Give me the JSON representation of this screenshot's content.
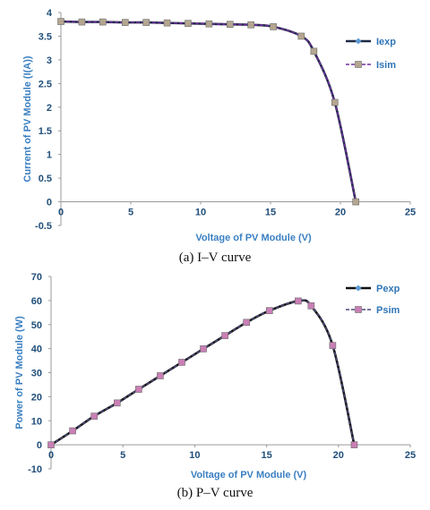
{
  "chart_data": [
    {
      "type": "line",
      "title": "",
      "xlabel": "Voltage of PV Module (V)",
      "ylabel": "Current of PV Module (I(A))",
      "caption": "(a) I–V curve",
      "xlim": [
        0,
        25
      ],
      "ylim": [
        -0.5,
        4
      ],
      "xticks": [
        "0",
        "5",
        "10",
        "15",
        "20",
        "25"
      ],
      "yticks": [
        "-0.5",
        "0",
        "0.5",
        "1",
        "1.5",
        "2",
        "2.5",
        "3",
        "3.5",
        "4"
      ],
      "x": [
        0,
        1.5,
        3.0,
        4.6,
        6.1,
        7.6,
        9.1,
        10.6,
        12.1,
        13.6,
        15.2,
        17.2,
        18.1,
        19.6,
        21.1
      ],
      "series": [
        {
          "name": "Iexp",
          "color": "#1f2a44",
          "marker_color": "#5b9bd5",
          "dashed": false,
          "values": [
            3.81,
            3.8,
            3.8,
            3.79,
            3.79,
            3.78,
            3.77,
            3.76,
            3.75,
            3.74,
            3.7,
            3.5,
            3.18,
            2.1,
            0.0
          ]
        },
        {
          "name": "Isim",
          "color": "#7030a0",
          "marker_color": "#b4a690",
          "dashed": true,
          "values": [
            3.81,
            3.8,
            3.8,
            3.79,
            3.79,
            3.78,
            3.77,
            3.76,
            3.75,
            3.74,
            3.7,
            3.5,
            3.18,
            2.1,
            0.0
          ]
        }
      ],
      "legend_position": "right"
    },
    {
      "type": "line",
      "title": "",
      "xlabel": "Voltage of PV Module (V)",
      "ylabel": "Power of PV Module (W)",
      "caption": "(b) P–V curve",
      "xlim": [
        0,
        25
      ],
      "ylim": [
        -10,
        70
      ],
      "xticks": [
        "0",
        "5",
        "10",
        "15",
        "20",
        "25"
      ],
      "yticks": [
        "-10",
        "0",
        "10",
        "20",
        "30",
        "40",
        "50",
        "60",
        "70"
      ],
      "x": [
        0,
        1.5,
        3.0,
        4.6,
        6.1,
        7.6,
        9.1,
        10.6,
        12.1,
        13.6,
        15.2,
        17.2,
        18.1,
        19.6,
        21.1
      ],
      "series": [
        {
          "name": "Pexp",
          "color": "#111111",
          "marker_color": "#5b9bd5",
          "dashed": false,
          "values": [
            0,
            5.8,
            11.9,
            17.4,
            23.1,
            28.7,
            34.3,
            39.9,
            45.4,
            50.9,
            55.8,
            59.8,
            57.8,
            41.3,
            0
          ]
        },
        {
          "name": "Psim",
          "color": "#4a4a7a",
          "marker_color": "#c97fb5",
          "dashed": true,
          "values": [
            0,
            5.8,
            11.9,
            17.4,
            23.1,
            28.7,
            34.3,
            39.9,
            45.4,
            50.9,
            55.8,
            59.8,
            57.8,
            41.3,
            0
          ]
        }
      ],
      "legend_position": "right"
    }
  ]
}
